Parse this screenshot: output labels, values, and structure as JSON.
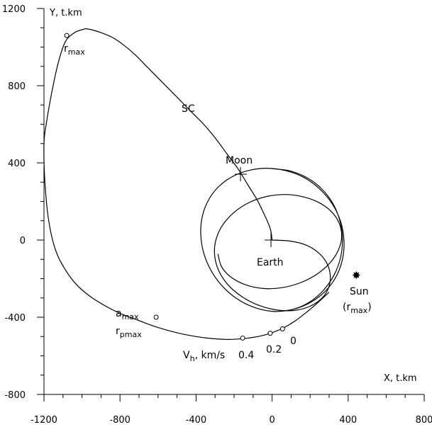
{
  "chart_data": {
    "type": "line",
    "x_axis": {
      "title": "X, t.km",
      "range": [
        -1200,
        800
      ],
      "ticks": [
        -1200,
        -800,
        -400,
        0,
        400,
        800
      ],
      "tick_labels": [
        "-1200",
        "-800",
        "-400",
        "0",
        "400",
        "800"
      ]
    },
    "y_axis": {
      "title": "Y, t.km",
      "range": [
        -800,
        1200
      ],
      "ticks": [
        -800,
        -400,
        0,
        400,
        800,
        1200
      ],
      "tick_labels": [
        "-800",
        "-400",
        "0",
        "400",
        "800",
        "1200"
      ]
    },
    "grid": false,
    "series": [
      {
        "id": "sc-trajectory",
        "x": [
          0,
          -10,
          -40,
          -80,
          -130,
          -180,
          -240,
          -300,
          -360,
          -420,
          -480,
          -540,
          -600,
          -660,
          -720,
          -780,
          -840,
          -900,
          -950,
          -980,
          -1000,
          -1030,
          -1060,
          -1080,
          -1100,
          -1130,
          -1160,
          -1185,
          -1200,
          -1195,
          -1175,
          -1140,
          -1090,
          -1030,
          -960,
          -880,
          -800,
          -720,
          -640,
          -560,
          -480,
          -400,
          -320,
          -240,
          -180,
          -120,
          -60,
          0,
          60,
          120,
          180,
          240,
          300
        ],
        "y": [
          0,
          60,
          130,
          210,
          290,
          370,
          450,
          530,
          600,
          660,
          720,
          780,
          840,
          900,
          960,
          1010,
          1050,
          1075,
          1090,
          1095,
          1090,
          1080,
          1060,
          1040,
          1000,
          900,
          760,
          620,
          500,
          300,
          100,
          -50,
          -150,
          -230,
          -290,
          -340,
          -380,
          -410,
          -440,
          -465,
          -485,
          -500,
          -510,
          -515,
          -513,
          -507,
          -497,
          -480,
          -455,
          -420,
          -375,
          -325,
          -270
        ]
      },
      {
        "id": "lunar-loops",
        "x": [
          0,
          92,
          176,
          243,
          288,
          306,
          296,
          258,
          195,
          114,
          22,
          -71,
          -158,
          -230,
          -279,
          -302,
          -297,
          -264,
          -205,
          -128,
          -37,
          60,
          155,
          241,
          309,
          352,
          366,
          349,
          304,
          234,
          147,
          50,
          -47,
          -139,
          -215,
          -266,
          -285
        ],
        "y": [
          0,
          -5,
          -25,
          -65,
          -120,
          -185,
          -250,
          -305,
          -345,
          -365,
          -362,
          -338,
          -294,
          -234,
          -162,
          -83,
          -4,
          72,
          139,
          191,
          224,
          236,
          226,
          197,
          150,
          89,
          20,
          -51,
          -119,
          -178,
          -222,
          -247,
          -251,
          -232,
          -193,
          -138,
          -72
        ]
      },
      {
        "id": "lunar-orbit",
        "x": [
          0,
          95,
          184,
          260,
          319,
          356,
          370,
          360,
          326,
          271,
          199,
          113,
          19,
          -76,
          -168,
          -249,
          -314,
          -357,
          -375,
          -368,
          -336,
          -281,
          -207,
          -119,
          -22,
          75,
          168,
          250,
          316,
          360,
          378,
          370,
          337,
          280,
          203,
          112,
          14
        ],
        "y": [
          370,
          358,
          323,
          266,
          191,
          102,
          6,
          -91,
          -181,
          -259,
          -320,
          -358,
          -370,
          -355,
          -315,
          -252,
          -170,
          -76,
          22,
          119,
          205,
          277,
          330,
          362,
          372,
          359,
          324,
          265,
          188,
          97,
          -2,
          -100,
          -189,
          -265,
          -323,
          -359,
          -371
        ]
      }
    ],
    "points": [
      {
        "x": -1080,
        "y": 1060,
        "label": "r",
        "sub": "max"
      },
      {
        "x": -610,
        "y": -400,
        "label": "a",
        "sub": "max",
        "label2": "r",
        "sub2": "pmax"
      },
      {
        "x": -155,
        "y": -508,
        "label": "0.4"
      },
      {
        "x": -10,
        "y": -483,
        "label": "0.2"
      },
      {
        "x": 55,
        "y": -460,
        "label": "0"
      }
    ],
    "annotations": {
      "sc": "SC",
      "moon": "Moon",
      "earth": "Earth",
      "sun": "Sun",
      "sun_sub": "(r",
      "sun_sub2": "max",
      "sun_close": ")",
      "vh": "V",
      "vh_sub": "h",
      "vh_rest": ", km/s"
    },
    "moon_position": {
      "x": -150,
      "y": 340
    },
    "earth_position": {
      "x": 0,
      "y": 0
    },
    "sun_direction": {
      "x": 450,
      "y": -185
    }
  }
}
